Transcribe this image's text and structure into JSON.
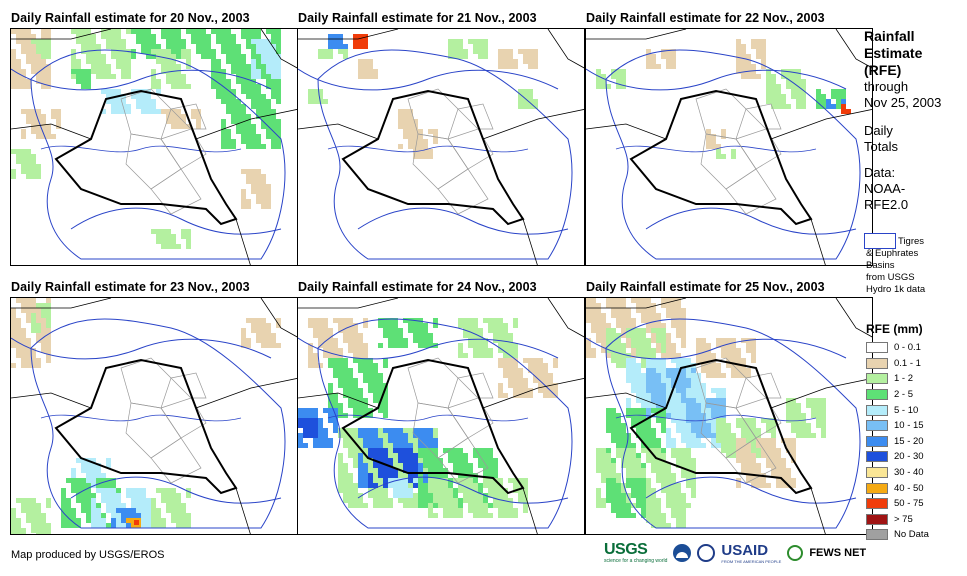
{
  "panels": [
    {
      "title": "Daily Rainfall estimate for 20 Nov., 2003"
    },
    {
      "title": "Daily Rainfall estimate for 21 Nov., 2003"
    },
    {
      "title": "Daily Rainfall estimate for 22 Nov., 2003"
    },
    {
      "title": "Daily Rainfall estimate for 23 Nov., 2003"
    },
    {
      "title": "Daily Rainfall estimate for 24 Nov., 2003"
    },
    {
      "title": "Daily Rainfall estimate for 25 Nov., 2003"
    }
  ],
  "side": {
    "title_lines": [
      "Rainfall",
      "Estimate",
      "(RFE)"
    ],
    "through": "through",
    "date": "Nov 25, 2003",
    "daily": "Daily",
    "totals": "Totals",
    "data_label": "Data:",
    "data_source_1": "NOAA-",
    "data_source_2": "RFE2.0",
    "basin_lines": [
      "Tigres",
      "& Euphrates",
      "Basins",
      "from USGS",
      "Hydro 1k data"
    ]
  },
  "legend": {
    "title": "RFE (mm)",
    "items": [
      {
        "label": "0 - 0.1",
        "color": "#ffffff"
      },
      {
        "label": "0.1 - 1",
        "color": "#e8d3b0"
      },
      {
        "label": "1 - 2",
        "color": "#b4f0a0"
      },
      {
        "label": "2 - 5",
        "color": "#5ee076"
      },
      {
        "label": "5 - 10",
        "color": "#b4ecfa"
      },
      {
        "label": "10 - 15",
        "color": "#78bff5"
      },
      {
        "label": "15 - 20",
        "color": "#3c8cf0"
      },
      {
        "label": "20 - 30",
        "color": "#1e50dc"
      },
      {
        "label": "30 - 40",
        "color": "#fae696"
      },
      {
        "label": "40 - 50",
        "color": "#f5aa14"
      },
      {
        "label": "50 - 75",
        "color": "#f03c0a"
      },
      {
        "label": "> 75",
        "color": "#a01414"
      },
      {
        "label": "No Data",
        "color": "#a0a0a0"
      }
    ]
  },
  "footer": {
    "credit": "Map produced by USGS/EROS"
  },
  "logos": {
    "usgs": "USGS",
    "usgs_sub": "science for a changing world",
    "usaid": "USAID",
    "usaid_sub": "FROM THE AMERICAN PEOPLE",
    "fews": "FEWS NET"
  }
}
